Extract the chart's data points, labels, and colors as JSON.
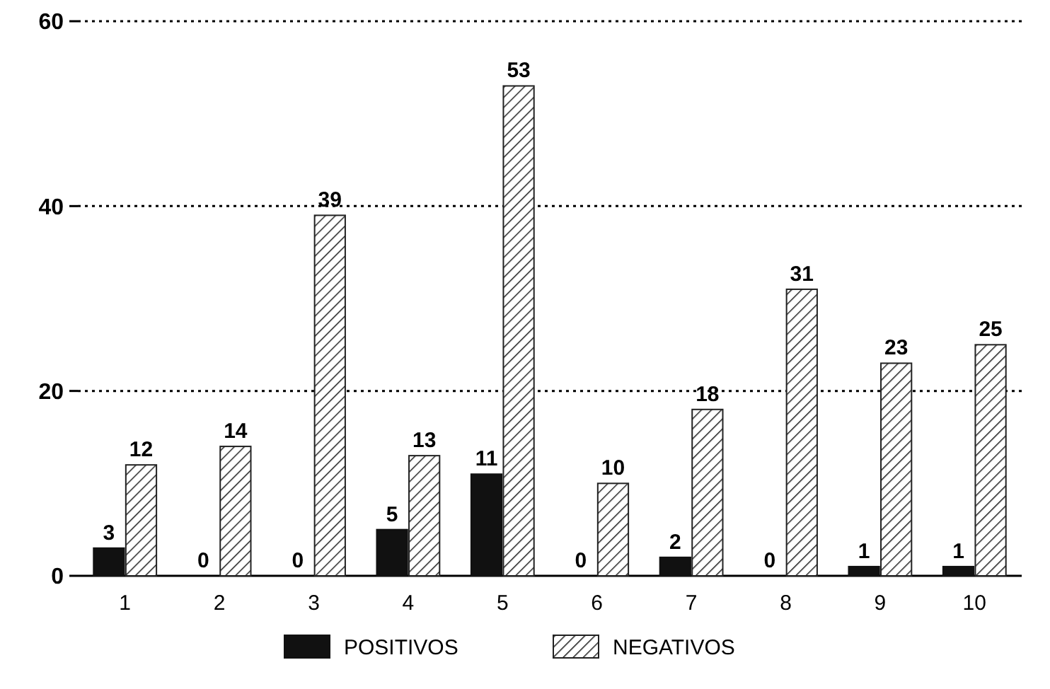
{
  "chart_data": {
    "type": "bar",
    "categories": [
      "1",
      "2",
      "3",
      "4",
      "5",
      "6",
      "7",
      "8",
      "9",
      "10"
    ],
    "series": [
      {
        "name": "POSITIVOS",
        "color": "#111111",
        "values": [
          3,
          0,
          0,
          5,
          11,
          0,
          2,
          0,
          1,
          1
        ]
      },
      {
        "name": "NEGATIVOS",
        "color": "#222222",
        "values": [
          12,
          14,
          39,
          13,
          53,
          10,
          18,
          31,
          23,
          25
        ]
      }
    ],
    "ylim": [
      0,
      60
    ],
    "yticks": [
      0,
      20,
      40,
      60
    ],
    "grid": "y",
    "line_style": "dotted",
    "data_labels": true,
    "legend": "bottom"
  }
}
